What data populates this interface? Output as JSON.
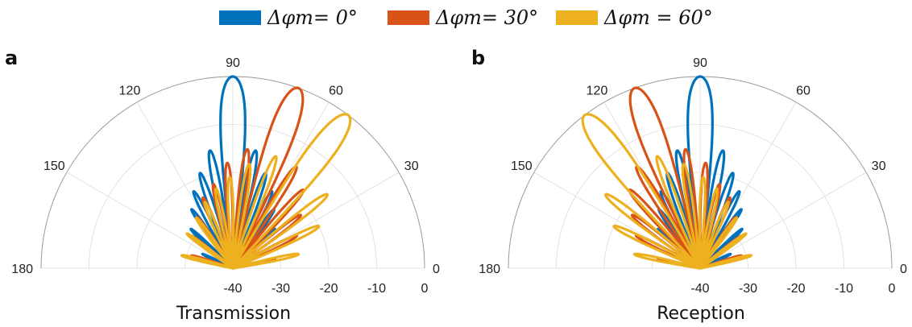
{
  "legend": {
    "entries": [
      {
        "label": "Δφm= 0°",
        "color": "#0072BD"
      },
      {
        "label": "Δφm= 30°",
        "color": "#D95319"
      },
      {
        "label": "Δφm = 60°",
        "color": "#EDB120"
      }
    ]
  },
  "chart_data": [
    {
      "type": "polar-line",
      "panel_label": "a",
      "xlabel": "Transmission",
      "theta_range_deg": [
        0,
        180
      ],
      "theta_ticks": [
        "0",
        "30",
        "60",
        "90",
        "120",
        "150",
        "180"
      ],
      "r_ticks": [
        "-40",
        "-30",
        "-20",
        "-10",
        "0"
      ],
      "r_range_db": [
        -40,
        0
      ],
      "grid": true,
      "series": [
        {
          "name": "Δφm= 0°",
          "color": "#0072BD",
          "main_lobe_deg": 90,
          "peak_db": 0,
          "lobes": [
            {
              "theta": 90,
              "db": 0
            },
            {
              "theta": 101,
              "db": -15
            },
            {
              "theta": 79,
              "db": -15
            },
            {
              "theta": 109,
              "db": -19
            },
            {
              "theta": 71,
              "db": -19
            },
            {
              "theta": 117,
              "db": -22
            },
            {
              "theta": 63,
              "db": -22
            },
            {
              "theta": 125,
              "db": -25
            },
            {
              "theta": 55,
              "db": -25
            },
            {
              "theta": 137,
              "db": -28
            },
            {
              "theta": 43,
              "db": -28
            },
            {
              "theta": 155,
              "db": -33
            },
            {
              "theta": 25,
              "db": -33
            }
          ]
        },
        {
          "name": "Δφm= 30°",
          "color": "#D95319",
          "main_lobe_deg": 70,
          "peak_db": 0,
          "lobes": [
            {
              "theta": 70,
              "db": 0
            },
            {
              "theta": 83,
              "db": -15
            },
            {
              "theta": 58,
              "db": -15
            },
            {
              "theta": 93,
              "db": -18
            },
            {
              "theta": 48,
              "db": -18
            },
            {
              "theta": 103,
              "db": -22
            },
            {
              "theta": 38,
              "db": -22
            },
            {
              "theta": 113,
              "db": -24
            },
            {
              "theta": 27,
              "db": -25
            },
            {
              "theta": 125,
              "db": -27
            },
            {
              "theta": 12,
              "db": -31
            },
            {
              "theta": 142,
              "db": -29
            },
            {
              "theta": 163,
              "db": -31
            }
          ]
        },
        {
          "name": "Δφm = 60°",
          "color": "#EDB120",
          "main_lobe_deg": 53,
          "peak_db": 0,
          "lobes": [
            {
              "theta": 53,
              "db": 0
            },
            {
              "theta": 69,
              "db": -15
            },
            {
              "theta": 38,
              "db": -15
            },
            {
              "theta": 81,
              "db": -18
            },
            {
              "theta": 26,
              "db": -20
            },
            {
              "theta": 92,
              "db": -21
            },
            {
              "theta": 12,
              "db": -26
            },
            {
              "theta": 102,
              "db": -23
            },
            {
              "theta": 113,
              "db": -25
            },
            {
              "theta": 126,
              "db": -27
            },
            {
              "theta": 143,
              "db": -28
            },
            {
              "theta": 166,
              "db": -29
            }
          ]
        }
      ]
    },
    {
      "type": "polar-line",
      "panel_label": "b",
      "xlabel": "Reception",
      "theta_range_deg": [
        0,
        180
      ],
      "theta_ticks": [
        "0",
        "30",
        "60",
        "90",
        "120",
        "150",
        "180"
      ],
      "r_ticks": [
        "-40",
        "-30",
        "-20",
        "-10",
        "0"
      ],
      "r_range_db": [
        -40,
        0
      ],
      "grid": true,
      "series": [
        {
          "name": "Δφm= 0°",
          "color": "#0072BD",
          "main_lobe_deg": 90,
          "peak_db": 0,
          "lobes": [
            {
              "theta": 90,
              "db": 0
            },
            {
              "theta": 101,
              "db": -15
            },
            {
              "theta": 79,
              "db": -15
            },
            {
              "theta": 109,
              "db": -19
            },
            {
              "theta": 71,
              "db": -19
            },
            {
              "theta": 117,
              "db": -22
            },
            {
              "theta": 63,
              "db": -22
            },
            {
              "theta": 125,
              "db": -25
            },
            {
              "theta": 55,
              "db": -25
            },
            {
              "theta": 137,
              "db": -28
            },
            {
              "theta": 43,
              "db": -28
            },
            {
              "theta": 155,
              "db": -33
            },
            {
              "theta": 25,
              "db": -33
            }
          ]
        },
        {
          "name": "Δφm= 30°",
          "color": "#D95319",
          "main_lobe_deg": 110,
          "peak_db": 0,
          "lobes": [
            {
              "theta": 110,
              "db": 0
            },
            {
              "theta": 97,
              "db": -15
            },
            {
              "theta": 122,
              "db": -15
            },
            {
              "theta": 87,
              "db": -18
            },
            {
              "theta": 132,
              "db": -18
            },
            {
              "theta": 77,
              "db": -22
            },
            {
              "theta": 142,
              "db": -22
            },
            {
              "theta": 67,
              "db": -24
            },
            {
              "theta": 153,
              "db": -25
            },
            {
              "theta": 55,
              "db": -27
            },
            {
              "theta": 168,
              "db": -31
            },
            {
              "theta": 38,
              "db": -29
            },
            {
              "theta": 17,
              "db": -31
            }
          ]
        },
        {
          "name": "Δφm = 60°",
          "color": "#EDB120",
          "main_lobe_deg": 127,
          "peak_db": 0,
          "lobes": [
            {
              "theta": 127,
              "db": 0
            },
            {
              "theta": 111,
              "db": -15
            },
            {
              "theta": 142,
              "db": -15
            },
            {
              "theta": 99,
              "db": -18
            },
            {
              "theta": 154,
              "db": -20
            },
            {
              "theta": 88,
              "db": -21
            },
            {
              "theta": 168,
              "db": -26
            },
            {
              "theta": 78,
              "db": -23
            },
            {
              "theta": 67,
              "db": -25
            },
            {
              "theta": 54,
              "db": -27
            },
            {
              "theta": 37,
              "db": -28
            },
            {
              "theta": 14,
              "db": -29
            }
          ]
        }
      ]
    }
  ]
}
